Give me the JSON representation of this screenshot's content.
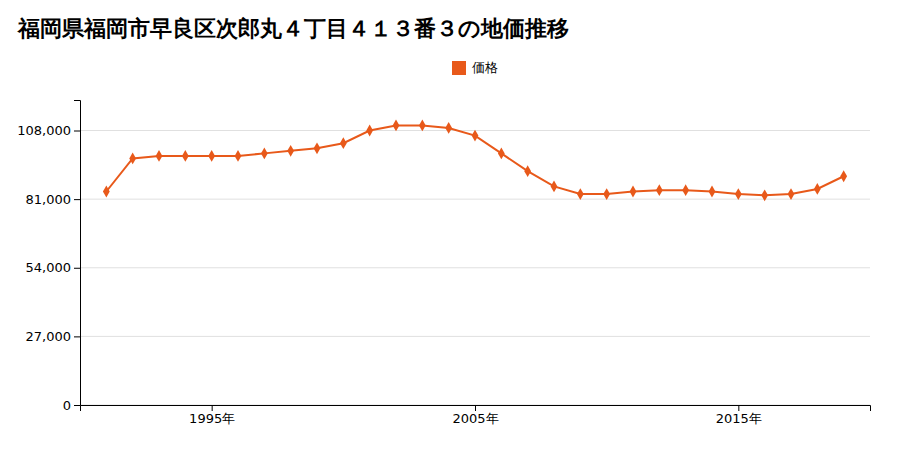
{
  "chart_data": {
    "type": "line",
    "title": "福岡県福岡市早良区次郎丸４丁目４１３番３の地価推移",
    "x": [
      1991,
      1992,
      1993,
      1994,
      1995,
      1996,
      1997,
      1998,
      1999,
      2000,
      2001,
      2002,
      2003,
      2004,
      2005,
      2006,
      2007,
      2008,
      2009,
      2010,
      2011,
      2012,
      2013,
      2014,
      2015,
      2016,
      2017,
      2018,
      2019
    ],
    "series": [
      {
        "name": "価格",
        "color": "#e8591a",
        "marker": "diamond",
        "line_style": "solid",
        "values": [
          84000,
          97000,
          98000,
          98000,
          98000,
          98000,
          99000,
          100000,
          101000,
          103000,
          108000,
          110000,
          110000,
          109000,
          106000,
          99000,
          92000,
          86000,
          83000,
          83000,
          84000,
          84500,
          84500,
          84000,
          83000,
          82500,
          83000,
          85000,
          90000
        ]
      }
    ],
    "xlim": [
      1990,
      2020
    ],
    "xticks": [
      {
        "value": 1995,
        "label": "1995年"
      },
      {
        "value": 2005,
        "label": "2005年"
      },
      {
        "value": 2015,
        "label": "2015年"
      }
    ],
    "ylim": [
      0,
      120000
    ],
    "yticks": [
      0,
      {
        "value": 27000,
        "label": "27,000"
      },
      {
        "value": 54000,
        "label": "54,000"
      },
      {
        "value": 81000,
        "label": "81,000"
      },
      {
        "value": 108000,
        "label": "108,000"
      }
    ],
    "grid": true,
    "legend": "top"
  }
}
